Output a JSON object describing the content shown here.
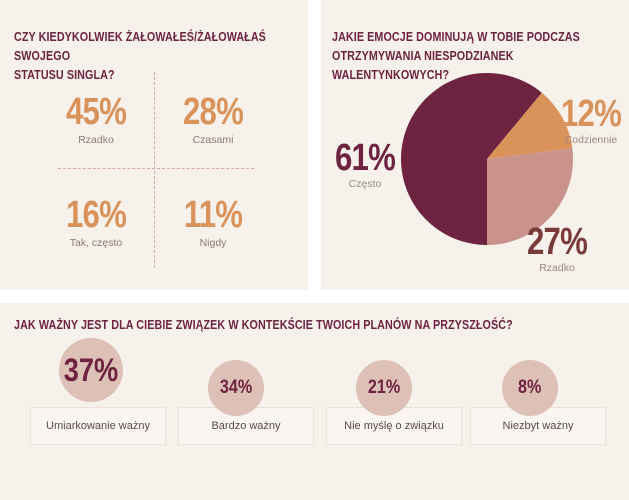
{
  "single_status": {
    "title_line1": "CZY KIEDYKOLWIEK ŻAŁOWAŁEŚ/ŻAŁOWAŁAŚ SWOJEGO",
    "title_line2": "STATUSU SINGLA?",
    "items": [
      {
        "value": "45%",
        "label": "Rzadko"
      },
      {
        "value": "28%",
        "label": "Czasami"
      },
      {
        "value": "16%",
        "label": "Tak, często"
      },
      {
        "value": "11%",
        "label": "Nigdy"
      }
    ]
  },
  "emotions": {
    "title_line1": "JAKIE EMOCJE DOMINUJĄ W TOBIE PODCZAS",
    "title_line2": "OTRZYMYWANIA NIESPODZIANEK WALENTYNKOWYCH?",
    "slices": [
      {
        "value": "61%",
        "label": "Często",
        "color": "#6e2340"
      },
      {
        "value": "12%",
        "label": "Codziennie",
        "color": "#d9925a"
      },
      {
        "value": "27%",
        "label": "Rzadko",
        "color": "#c9938c"
      }
    ]
  },
  "importance": {
    "title": "JAK WAŻNY JEST DLA CIEBIE ZWIĄZEK W KONTEKŚCIE TWOICH PLANÓW NA PRZYSZŁOŚĆ?",
    "options": [
      {
        "value": "37%",
        "label": "Umiarkowanie ważny"
      },
      {
        "value": "34%",
        "label": "Bardzo ważny"
      },
      {
        "value": "21%",
        "label": "Nie myślę o związku"
      },
      {
        "value": "8%",
        "label": "Niezbyt ważny"
      }
    ]
  },
  "chart_data": [
    {
      "type": "table",
      "title": "CZY KIEDYKOLWIEK ŻAŁOWAŁEŚ/ŻAŁOWAŁAŚ SWOJEGO STATUSU SINGLA?",
      "categories": [
        "Rzadko",
        "Czasami",
        "Tak, często",
        "Nigdy"
      ],
      "values": [
        45,
        28,
        16,
        11
      ]
    },
    {
      "type": "pie",
      "title": "JAKIE EMOCJE DOMINUJĄ W TOBIE PODCZAS OTRZYMYWANIA NIESPODZIANEK WALENTYNKOWYCH?",
      "categories": [
        "Często",
        "Codziennie",
        "Rzadko"
      ],
      "values": [
        61,
        12,
        27
      ],
      "colors": [
        "#6e2340",
        "#d9925a",
        "#c9938c"
      ]
    },
    {
      "type": "table",
      "title": "JAK WAŻNY JEST DLA CIEBIE ZWIĄZEK W KONTEKŚCIE TWOICH PLANÓW NA PRZYSZŁOŚĆ?",
      "categories": [
        "Umiarkowanie ważny",
        "Bardzo ważny",
        "Nie myślę o związku",
        "Niezbyt ważny"
      ],
      "values": [
        37,
        34,
        21,
        8
      ]
    }
  ]
}
